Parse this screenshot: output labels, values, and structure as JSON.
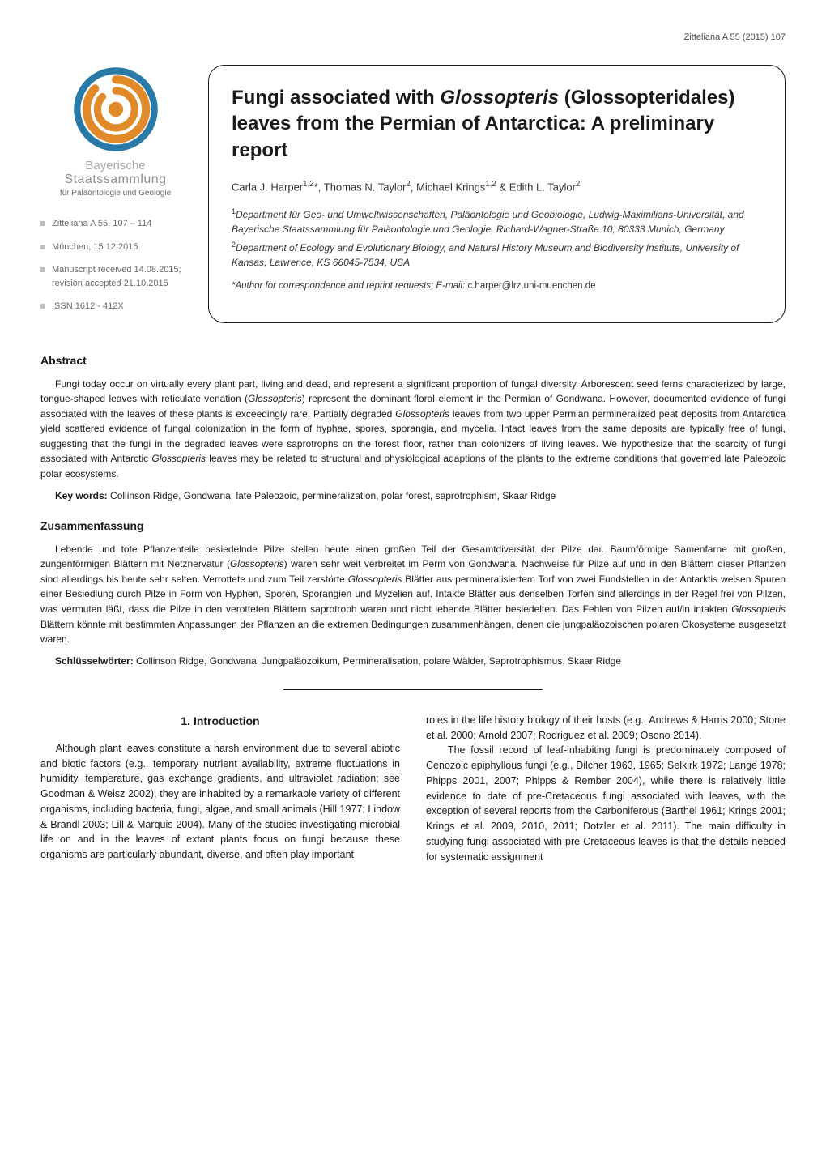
{
  "page_header": "Zitteliana A 55 (2015) 107",
  "logo": {
    "label_top": "Bayerische",
    "label_mid": "Staatssammlung",
    "label_bottom": "für Paläontologie und Geologie",
    "swirl_color": "#e08a2a",
    "ring_color": "#2a7aa8"
  },
  "meta": {
    "items": [
      "Zitteliana A 55, 107 – 114",
      "München, 15.12.2015",
      "Manuscript received 14.08.2015; revision accepted 21.10.2015",
      "ISSN 1612 - 412X"
    ]
  },
  "title_card": {
    "title_html": "Fungi associated with <em>Glossopteris</em> (Glossopteridales) leaves from the Permian of Antarctica: A preliminary report",
    "authors_html": "Carla J. Harper<sup>1,2</sup>*, Thomas N. Taylor<sup>2</sup>, Michael Krings<sup>1,2</sup> &amp; Edith L. Taylor<sup>2</sup>",
    "affiliations": [
      "<sup>1</sup>Department für Geo- und Umweltwissenschaften, Paläontologie und Geobiologie, Ludwig-Maximilians-Universität, and Bayerische Staatssammlung für Paläontologie und Geologie, Richard-Wagner-Straße 10, 80333 Munich, Germany",
      "<sup>2</sup>Department of Ecology and Evolutionary Biology, and Natural History Museum and Biodiversity Institute, University of Kansas, Lawrence, KS 66045-7534, USA"
    ],
    "correspondence_html": "*Author for correspondence and reprint requests; E-mail: <span class=\"email\">c.harper@lrz.uni-muenchen.de</span>"
  },
  "abstract": {
    "heading": "Abstract",
    "body_html": "Fungi today occur on virtually every plant part, living and dead, and represent a significant proportion of fungal diversity. Arborescent seed ferns characterized by large, tongue-shaped leaves with reticulate venation (<em>Glossopteris</em>) represent the dominant floral element in the Permian of Gondwana. However, documented evidence of fungi associated with the leaves of these plants is exceedingly rare. Partially degraded <em>Glossopteris</em> leaves from two upper Permian permineralized peat deposits from Antarctica yield scattered evidence of fungal colonization in the form of hyphae, spores, sporangia, and mycelia. Intact leaves from the same deposits are typically free of fungi, suggesting that the fungi in the degraded leaves were saprotrophs on the forest floor, rather than colonizers of living leaves. We hypothesize that the scarcity of fungi associated with Antarctic <em>Glossopteris</em> leaves may be related to structural and physiological adaptions of the plants to the extreme conditions that governed late Paleozoic polar ecosystems.",
    "keywords_label": "Key words:",
    "keywords_text": "Collinson Ridge, Gondwana, late Paleozoic, permineralization, polar forest, saprotrophism, Skaar Ridge"
  },
  "zusammenfassung": {
    "heading": "Zusammenfassung",
    "body_html": "Lebende und tote Pflanzenteile besiedelnde Pilze stellen heute einen großen Teil der Gesamtdiversität der Pilze dar. Baumförmige Samenfarne mit großen, zungenförmigen Blättern mit Netznervatur (<em>Glossopteris</em>) waren sehr weit verbreitet im Perm von Gondwana. Nachweise für Pilze auf und in den Blättern dieser Pflanzen sind allerdings bis heute sehr selten. Verrottete und zum Teil zerstörte <em>Glossopteris</em> Blätter aus permineralisiertem Torf von zwei Fundstellen in der Antarktis weisen Spuren einer Besiedlung durch Pilze in Form von Hyphen, Sporen, Sporangien und Myzelien auf. Intakte Blätter aus denselben Torfen sind allerdings in der Regel frei von Pilzen, was vermuten läßt, dass die Pilze in den verotteten Blättern saprotroph waren und nicht lebende Blätter besiedelten. Das Fehlen von Pilzen auf/in intakten <em>Glossopteris</em> Blättern könnte mit bestimmten Anpassungen der Pflanzen an die extremen Bedingungen zusammenhängen, denen die jungpaläozoischen polaren Ökosysteme ausgesetzt waren.",
    "keywords_label": "Schlüsselwörter:",
    "keywords_text": "Collinson Ridge, Gondwana, Jungpaläozoikum, Permineralisation, polare Wälder, Saprotrophismus, Skaar Ridge"
  },
  "intro": {
    "heading": "1. Introduction",
    "col1_html": "Although plant leaves constitute a harsh environment due to several abiotic and biotic factors (e.g., temporary nutrient availability, extreme fluctuations in humidity, temperature, gas exchange gradients, and ultraviolet radiation; see Goodman &amp; Weisz 2002), they are inhabited by a remarkable variety of different organisms, including bacteria, fungi, algae, and small animals (Hill 1977; Lindow &amp; Brandl 2003; Lill &amp; Marquis 2004). Many of the studies investigating microbial life on and in the leaves of extant plants focus on fungi because these organisms are particularly abundant, diverse, and often play important",
    "col2_html": "roles in the life history biology of their hosts (e.g., Andrews &amp; Harris 2000; Stone et al. 2000; Arnold 2007; Rodriguez et al. 2009; Osono 2014).<br>&nbsp;&nbsp;&nbsp;&nbsp;The fossil record of leaf-inhabiting fungi is predominately composed of Cenozoic epiphyllous fungi (e.g., Dilcher 1963, 1965; Selkirk 1972; Lange 1978; Phipps 2001, 2007; Phipps &amp; Rember 2004), while there is relatively little evidence to date of pre-Cretaceous fungi associated with leaves, with the exception of several reports from the Carboniferous (Barthel 1961; Krings 2001; Krings et al. 2009, 2010, 2011; Dotzler et al. 2011). The main difficulty in studying fungi associated with pre-Cretaceous leaves is that the details needed for systematic assignment"
  },
  "colors": {
    "text": "#1a1a1a",
    "muted": "#6a6a6a",
    "background": "#ffffff",
    "bullet": "#bfbfbf"
  }
}
